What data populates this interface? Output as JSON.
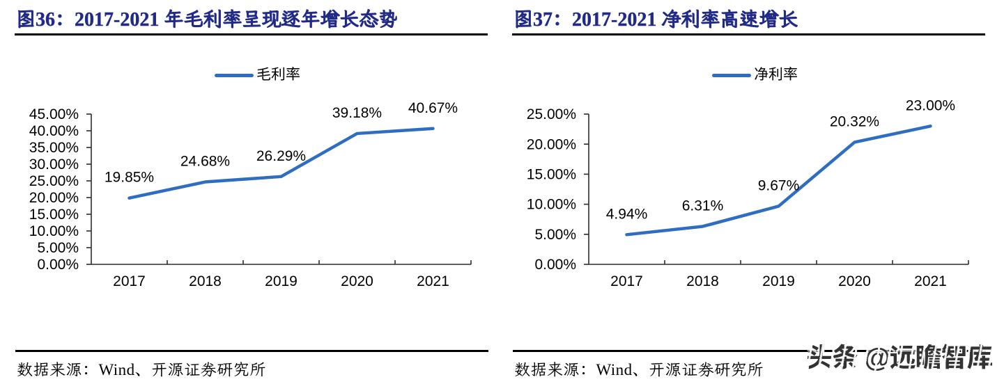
{
  "page": {
    "background": "#ffffff"
  },
  "watermark": {
    "text": "头条 @远瞻智库",
    "color": "#3f3f3f"
  },
  "chart_data": [
    {
      "type": "line",
      "figure_label": "图36",
      "title": "图36：2017-2021 年毛利率呈现逐年增长态势",
      "legend": [
        "毛利率"
      ],
      "legend_position": "top",
      "categories": [
        "2017",
        "2018",
        "2019",
        "2020",
        "2021"
      ],
      "series": [
        {
          "name": "毛利率",
          "values": [
            19.85,
            24.68,
            26.29,
            39.18,
            40.67
          ]
        }
      ],
      "data_labels": [
        "19.85%",
        "24.68%",
        "26.29%",
        "39.18%",
        "40.67%"
      ],
      "ylim": [
        0,
        45
      ],
      "ytick_step": 5,
      "ytick_labels": [
        "0.00%",
        "5.00%",
        "10.00%",
        "15.00%",
        "20.00%",
        "25.00%",
        "30.00%",
        "35.00%",
        "40.00%",
        "45.00%"
      ],
      "grid": false,
      "line_color": "#2f6dc0",
      "source": "数据来源：Wind、开源证券研究所"
    },
    {
      "type": "line",
      "figure_label": "图37",
      "title": "图37：2017-2021 净利率高速增长",
      "legend": [
        "净利率"
      ],
      "legend_position": "top",
      "categories": [
        "2017",
        "2018",
        "2019",
        "2020",
        "2021"
      ],
      "series": [
        {
          "name": "净利率",
          "values": [
            4.94,
            6.31,
            9.67,
            20.32,
            23.0
          ]
        }
      ],
      "data_labels": [
        "4.94%",
        "6.31%",
        "9.67%",
        "20.32%",
        "23.00%"
      ],
      "ylim": [
        0,
        25
      ],
      "ytick_step": 5,
      "ytick_labels": [
        "0.00%",
        "5.00%",
        "10.00%",
        "15.00%",
        "20.00%",
        "25.00%"
      ],
      "grid": false,
      "line_color": "#2f6dc0",
      "source": "数据来源：Wind、开源证券研究所"
    }
  ]
}
